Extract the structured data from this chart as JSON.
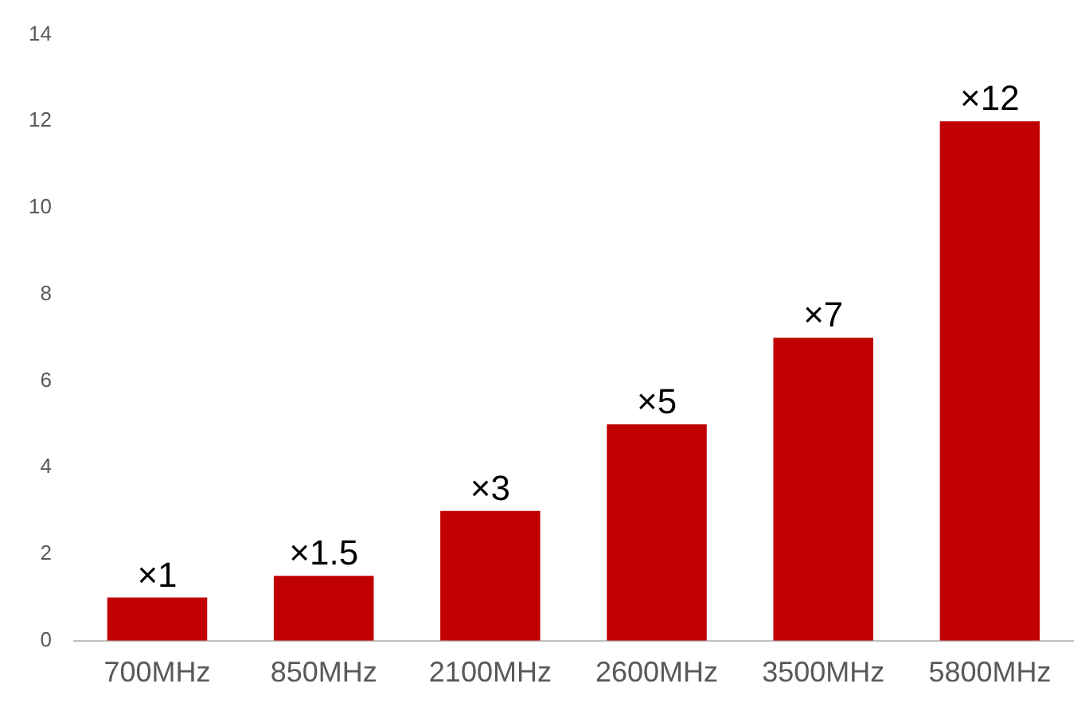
{
  "chart_data": {
    "type": "bar",
    "categories": [
      "700MHz",
      "850MHz",
      "2100MHz",
      "2600MHz",
      "3500MHz",
      "5800MHz"
    ],
    "values": [
      1,
      1.5,
      3,
      5,
      7,
      12
    ],
    "value_labels": [
      "×1",
      "×1.5",
      "×3",
      "×5",
      "×7",
      "×12"
    ],
    "color": "#c00000",
    "ylim": [
      0,
      14
    ],
    "yticks": [
      0,
      2,
      4,
      6,
      8,
      10,
      12,
      14
    ],
    "grid": false,
    "legend": false
  }
}
